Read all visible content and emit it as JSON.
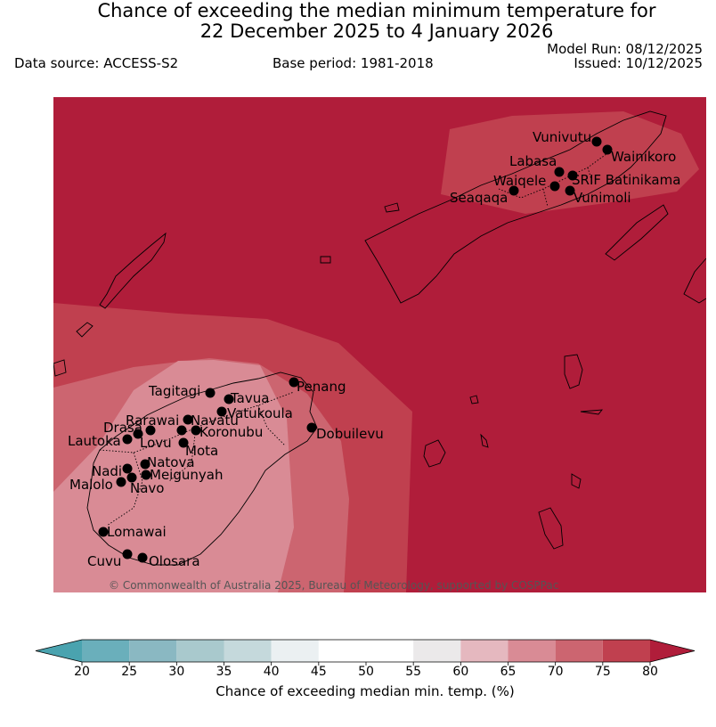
{
  "header": {
    "title_line1": "Chance of exceeding the median minimum temperature for",
    "title_line2": "22 December 2025 to 4 January 2026",
    "data_source": "Data source: ACCESS-S2",
    "base_period": "Base period: 1981-2018",
    "model_run": "Model Run: 08/12/2025",
    "issued": "Issued: 10/12/2025"
  },
  "map": {
    "credit": "© Commonwealth of Australia 2025, Bureau of Meteorology, supported by COSPPac",
    "stations": [
      {
        "name": "Vunivutu"
      },
      {
        "name": "Wainikoro"
      },
      {
        "name": "Labasa"
      },
      {
        "name": "SRIF Batinikama"
      },
      {
        "name": "Waiqele"
      },
      {
        "name": "Vunimoli"
      },
      {
        "name": "Seaqaqa"
      },
      {
        "name": "Penang"
      },
      {
        "name": "Tagitagi"
      },
      {
        "name": "Tavua"
      },
      {
        "name": "Vatukoula"
      },
      {
        "name": "Rarawai"
      },
      {
        "name": "Navatu"
      },
      {
        "name": "Koronubu"
      },
      {
        "name": "Drasa"
      },
      {
        "name": "Lautoka"
      },
      {
        "name": "Lovu"
      },
      {
        "name": "Mota"
      },
      {
        "name": "Dobuilevu"
      },
      {
        "name": "Natova"
      },
      {
        "name": "Nadi"
      },
      {
        "name": "Meigunyah"
      },
      {
        "name": "Malolo"
      },
      {
        "name": "Navo"
      },
      {
        "name": "Lomawai"
      },
      {
        "name": "Cuvu"
      },
      {
        "name": "Olosara"
      }
    ]
  },
  "colorbar": {
    "title": "Chance of exceeding median min. temp. (%)",
    "ticks": [
      "20",
      "25",
      "30",
      "35",
      "40",
      "45",
      "50",
      "55",
      "60",
      "65",
      "70",
      "75",
      "80"
    ],
    "colors": [
      "#6aafbb",
      "#8ab8c2",
      "#a9c9cd",
      "#c5d9dc",
      "#ebf0f2",
      "#ffffff",
      "#ffffff",
      "#ebe9ea",
      "#e5b8bf",
      "#d98b95",
      "#cc6570",
      "#c0404f"
    ],
    "under_color": "#4aa3af",
    "over_color": "#b01d3a"
  },
  "colors": {
    "band_80": "#b01d3a",
    "band_75": "#c0404f",
    "band_70": "#cc6570",
    "band_65": "#d98b95"
  }
}
